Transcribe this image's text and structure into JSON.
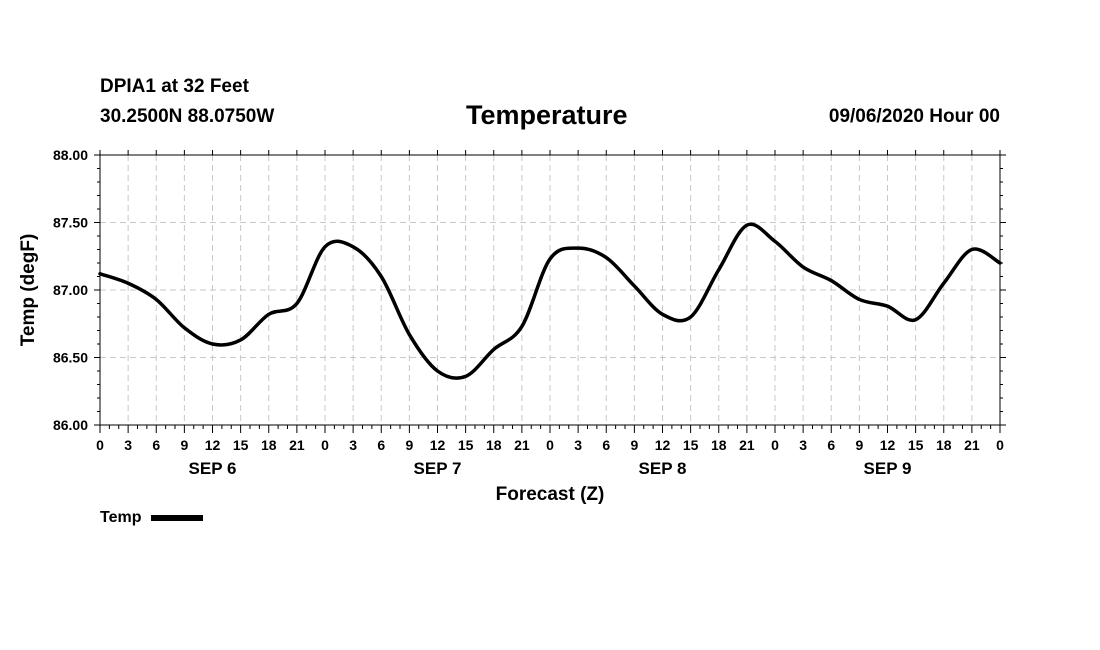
{
  "header": {
    "station": "DPIA1 at 32 Feet",
    "coords": "30.2500N 88.0750W",
    "title": "Temperature",
    "timestamp": "09/06/2020 Hour 00"
  },
  "legend": {
    "label": "Temp",
    "color": "#000000"
  },
  "chart_data": {
    "type": "line",
    "title": "Temperature",
    "xlabel": "Forecast (Z)",
    "ylabel": "Temp (degF)",
    "xlim": [
      0,
      96
    ],
    "ylim": [
      86.0,
      88.0
    ],
    "yticks": [
      "86.00",
      "86.50",
      "87.00",
      "87.50",
      "88.00"
    ],
    "y_tick_values": [
      86.0,
      86.5,
      87.0,
      87.5,
      88.0
    ],
    "xtick_labels": [
      "0",
      "3",
      "6",
      "9",
      "12",
      "15",
      "18",
      "21",
      "0",
      "3",
      "6",
      "9",
      "12",
      "15",
      "18",
      "21",
      "0",
      "3",
      "6",
      "9",
      "12",
      "15",
      "18",
      "21",
      "0",
      "3",
      "6",
      "9",
      "12",
      "15",
      "18",
      "21",
      "0"
    ],
    "day_labels": [
      {
        "label": "SEP 6",
        "hour": 12
      },
      {
        "label": "SEP 7",
        "hour": 36
      },
      {
        "label": "SEP 8",
        "hour": 60
      },
      {
        "label": "SEP 9",
        "hour": 84
      }
    ],
    "grid": true,
    "series": [
      {
        "name": "Temp",
        "color": "#000000",
        "x": [
          0,
          3,
          6,
          9,
          12,
          15,
          18,
          21,
          24,
          27,
          30,
          33,
          36,
          39,
          42,
          45,
          48,
          51,
          54,
          57,
          60,
          63,
          66,
          69,
          72,
          75,
          78,
          81,
          84,
          87,
          90,
          93,
          96
        ],
        "values": [
          87.12,
          87.05,
          86.93,
          86.72,
          86.6,
          86.63,
          86.82,
          86.9,
          87.32,
          87.32,
          87.1,
          86.67,
          86.4,
          86.36,
          86.56,
          86.73,
          87.23,
          87.31,
          87.24,
          87.03,
          86.82,
          86.8,
          87.15,
          87.48,
          87.36,
          87.17,
          87.07,
          86.93,
          86.88,
          86.78,
          87.05,
          87.3,
          87.2
        ]
      }
    ]
  }
}
